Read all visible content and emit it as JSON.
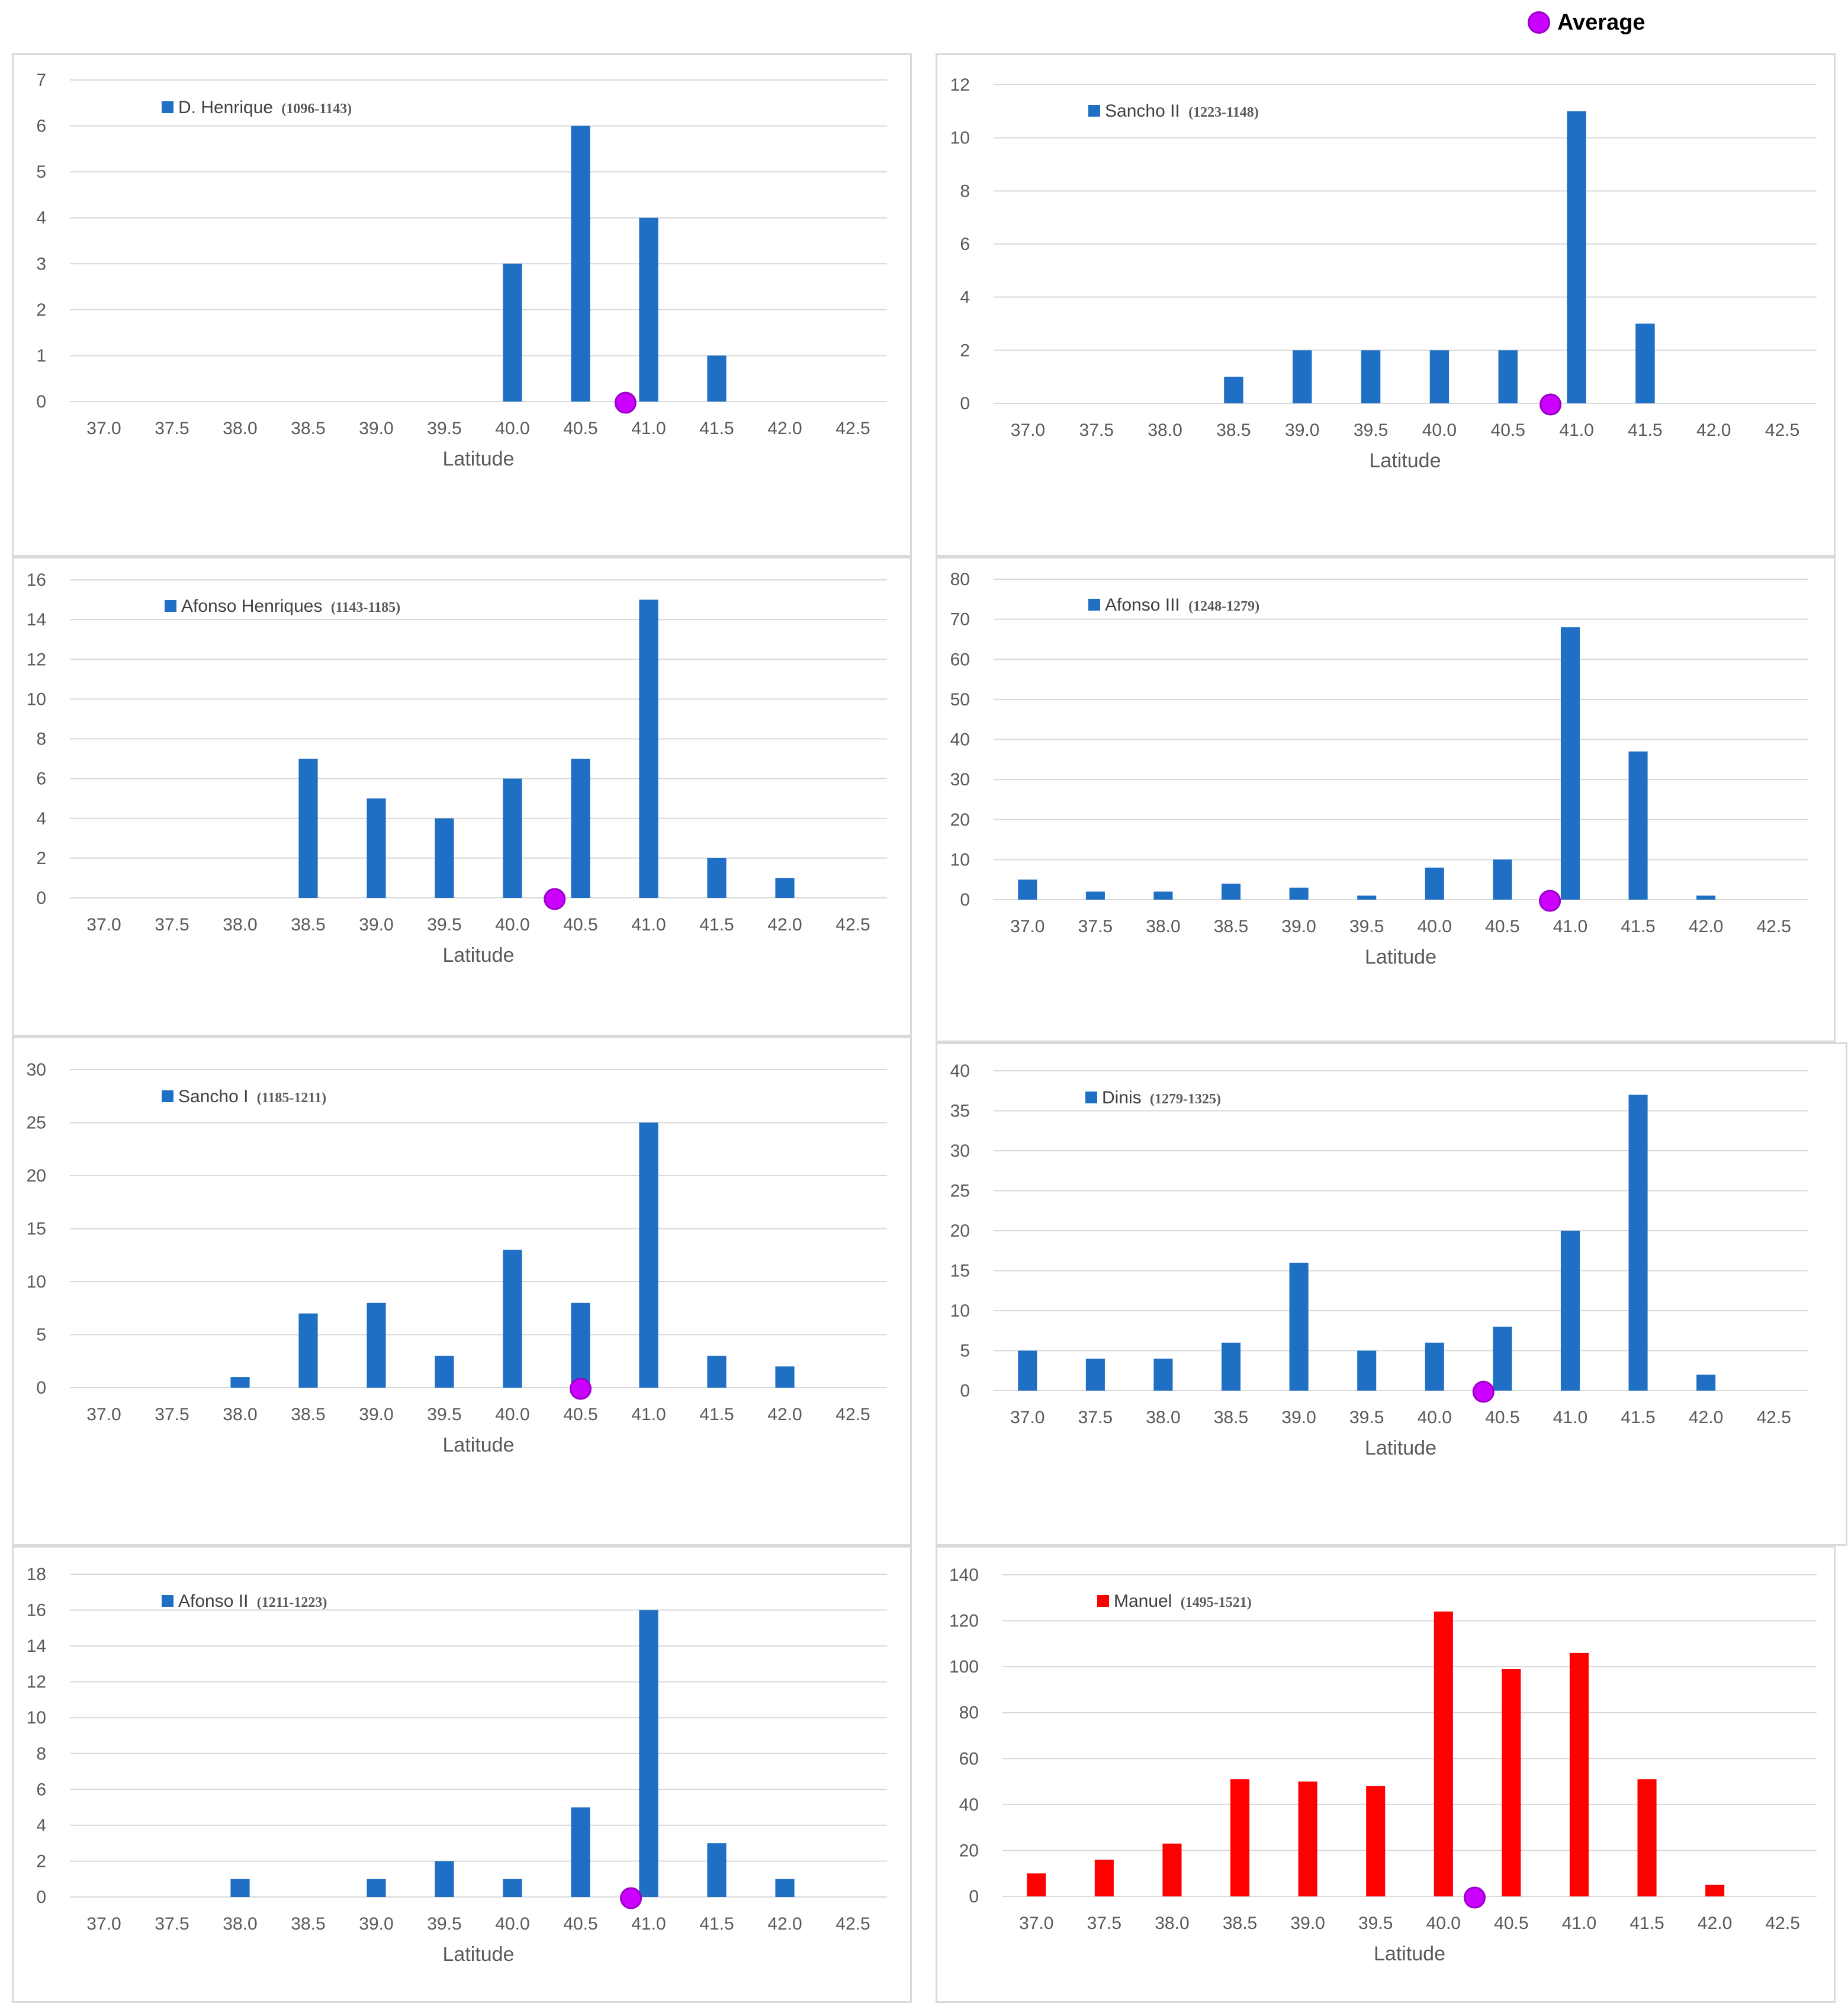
{
  "legend": {
    "average_label": "Average",
    "average_color": "#cc00ff"
  },
  "x_ticks": [
    "37.0",
    "37.5",
    "38.0",
    "38.5",
    "39.0",
    "39.5",
    "40.0",
    "40.5",
    "41.0",
    "41.5",
    "42.0",
    "42.5"
  ],
  "chart_data": [
    {
      "type": "bar",
      "series_name": "D. Henrique",
      "series_years": "(1096-1143)",
      "color": "#1f6fc5",
      "xlabel": "Latitude",
      "ylim": [
        0,
        7
      ],
      "yticks": [
        "0",
        "1",
        "2",
        "3",
        "4",
        "5",
        "6",
        "7"
      ],
      "values": [
        0,
        0,
        0,
        0,
        0,
        0,
        3,
        6,
        4,
        1,
        0,
        0
      ],
      "average_latitude": 40.83
    },
    {
      "type": "bar",
      "series_name": "Sancho II",
      "series_years": "(1223-1148)",
      "color": "#1f6fc5",
      "xlabel": "Latitude",
      "ylim": [
        0,
        12
      ],
      "yticks": [
        "0",
        "2",
        "4",
        "6",
        "8",
        "10",
        "12"
      ],
      "values": [
        0,
        0,
        0,
        1,
        2,
        2,
        2,
        2,
        11,
        3,
        0,
        0
      ],
      "average_latitude": 40.81
    },
    {
      "type": "bar",
      "series_name": "Afonso Henriques",
      "series_years": "(1143-1185)",
      "color": "#1f6fc5",
      "xlabel": "Latitude",
      "ylim": [
        0,
        16
      ],
      "yticks": [
        "0",
        "2",
        "4",
        "6",
        "8",
        "10",
        "12",
        "14",
        "16"
      ],
      "values": [
        0,
        0,
        0,
        7,
        5,
        4,
        6,
        7,
        15,
        2,
        1,
        0
      ],
      "average_latitude": 40.31
    },
    {
      "type": "bar",
      "series_name": "Afonso III",
      "series_years": "(1248-1279)",
      "color": "#1f6fc5",
      "xlabel": "Latitude",
      "ylim": [
        0,
        80
      ],
      "yticks": [
        "0",
        "10",
        "20",
        "30",
        "40",
        "50",
        "60",
        "70",
        "80"
      ],
      "values": [
        5,
        2,
        2,
        4,
        3,
        1,
        8,
        10,
        68,
        37,
        1,
        0
      ],
      "average_latitude": 40.85
    },
    {
      "type": "bar",
      "series_name": "Sancho I",
      "series_years": "(1185-1211)",
      "color": "#1f6fc5",
      "xlabel": "Latitude",
      "ylim": [
        0,
        30
      ],
      "yticks": [
        "0",
        "5",
        "10",
        "15",
        "20",
        "25",
        "30"
      ],
      "values": [
        0,
        0,
        1,
        7,
        8,
        3,
        13,
        8,
        25,
        3,
        2,
        0
      ],
      "average_latitude": 40.5
    },
    {
      "type": "bar",
      "series_name": "Dinis",
      "series_years": "(1279-1325)",
      "color": "#1f6fc5",
      "xlabel": "Latitude",
      "ylim": [
        0,
        40
      ],
      "yticks": [
        "0",
        "5",
        "10",
        "15",
        "20",
        "25",
        "30",
        "35",
        "40"
      ],
      "values": [
        5,
        4,
        4,
        6,
        16,
        5,
        6,
        8,
        20,
        37,
        2,
        0
      ],
      "average_latitude": 40.36
    },
    {
      "type": "bar",
      "series_name": "Afonso II",
      "series_years": "(1211-1223)",
      "color": "#1f6fc5",
      "xlabel": "Latitude",
      "ylim": [
        0,
        18
      ],
      "yticks": [
        "0",
        "2",
        "4",
        "6",
        "8",
        "10",
        "12",
        "14",
        "16",
        "18"
      ],
      "values": [
        0,
        0,
        1,
        0,
        1,
        2,
        1,
        5,
        16,
        3,
        1,
        0
      ],
      "average_latitude": 40.87
    },
    {
      "type": "bar",
      "series_name": "Manuel",
      "series_years": "(1495-1521)",
      "color": "#ff0000",
      "xlabel": "Latitude",
      "ylim": [
        0,
        140
      ],
      "yticks": [
        "0",
        "20",
        "40",
        "60",
        "80",
        "100",
        "120",
        "140"
      ],
      "values": [
        10,
        16,
        23,
        51,
        50,
        48,
        124,
        99,
        106,
        51,
        5,
        0
      ],
      "average_latitude": 40.23
    }
  ]
}
